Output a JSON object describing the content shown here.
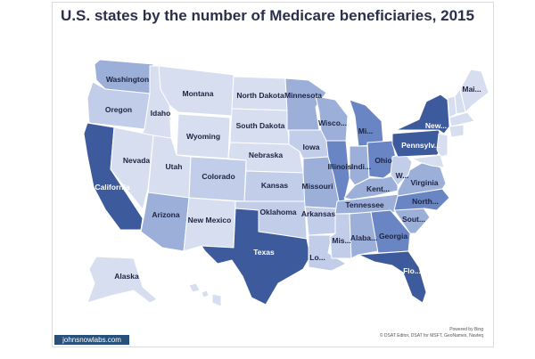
{
  "title": "U.S. states by the number of Medicare beneficiaries, 2015",
  "colors": {
    "very_light": "#d6def0",
    "light": "#c1cde9",
    "medium": "#9cafd9",
    "dark": "#6985c3",
    "darkest": "#3c5a9c",
    "border": "#ffffff",
    "ocean": "#ffffff"
  },
  "attribution": {
    "line1": "Powered by Bing",
    "line2": "© DSAT Editor, DSAT for MSFT, GeoNames, Navteq"
  },
  "brand": "johnsnowlabs.com",
  "states": [
    {
      "key": "wa",
      "label": "Washington",
      "level": "medium"
    },
    {
      "key": "or",
      "label": "Oregon",
      "level": "light"
    },
    {
      "key": "ca",
      "label": "California",
      "level": "darkest"
    },
    {
      "key": "id",
      "label": "Idaho",
      "level": "very_light"
    },
    {
      "key": "nv",
      "label": "Nevada",
      "level": "very_light"
    },
    {
      "key": "mt",
      "label": "Montana",
      "level": "very_light"
    },
    {
      "key": "wy",
      "label": "Wyoming",
      "level": "very_light"
    },
    {
      "key": "ut",
      "label": "Utah",
      "level": "very_light"
    },
    {
      "key": "az",
      "label": "Arizona",
      "level": "medium"
    },
    {
      "key": "co",
      "label": "Colorado",
      "level": "light"
    },
    {
      "key": "nm",
      "label": "New Mexico",
      "level": "very_light"
    },
    {
      "key": "nd",
      "label": "North Dakota",
      "level": "very_light"
    },
    {
      "key": "sd",
      "label": "South Dakota",
      "level": "very_light"
    },
    {
      "key": "ne",
      "label": "Nebraska",
      "level": "very_light"
    },
    {
      "key": "ks",
      "label": "Kansas",
      "level": "light"
    },
    {
      "key": "ok",
      "label": "Oklahoma",
      "level": "light"
    },
    {
      "key": "tx",
      "label": "Texas",
      "level": "darkest"
    },
    {
      "key": "mn",
      "label": "Minnesota",
      "level": "medium"
    },
    {
      "key": "ia",
      "label": "Iowa",
      "level": "light"
    },
    {
      "key": "mo",
      "label": "Missouri",
      "level": "medium"
    },
    {
      "key": "ar",
      "label": "Arkansas",
      "level": "light"
    },
    {
      "key": "la",
      "label": "Lo...",
      "level": "light"
    },
    {
      "key": "wi",
      "label": "Wisco...",
      "level": "medium"
    },
    {
      "key": "il",
      "label": "Illinois",
      "level": "dark"
    },
    {
      "key": "mi",
      "label": "Mi...",
      "level": "dark"
    },
    {
      "key": "in",
      "label": "Indi...",
      "level": "medium"
    },
    {
      "key": "oh",
      "label": "Ohio",
      "level": "dark"
    },
    {
      "key": "ky",
      "label": "Kent...",
      "level": "medium"
    },
    {
      "key": "tn",
      "label": "Tennessee",
      "level": "medium"
    },
    {
      "key": "ms",
      "label": "Mis...",
      "level": "light"
    },
    {
      "key": "al",
      "label": "Alaba...",
      "level": "medium"
    },
    {
      "key": "ga",
      "label": "Georgia",
      "level": "dark"
    },
    {
      "key": "fl",
      "label": "Flo...",
      "level": "darkest"
    },
    {
      "key": "sc",
      "label": "Sout...",
      "level": "medium"
    },
    {
      "key": "nc",
      "label": "North...",
      "level": "dark"
    },
    {
      "key": "va",
      "label": "Virginia",
      "level": "medium"
    },
    {
      "key": "wv",
      "label": "W...",
      "level": "light"
    },
    {
      "key": "pa",
      "label": "Pennsylv...",
      "level": "darkest"
    },
    {
      "key": "ny",
      "label": "New...",
      "level": "darkest"
    },
    {
      "key": "me",
      "label": "Mai...",
      "level": "very_light"
    },
    {
      "key": "ak",
      "label": "Alaska",
      "level": "very_light"
    }
  ]
}
